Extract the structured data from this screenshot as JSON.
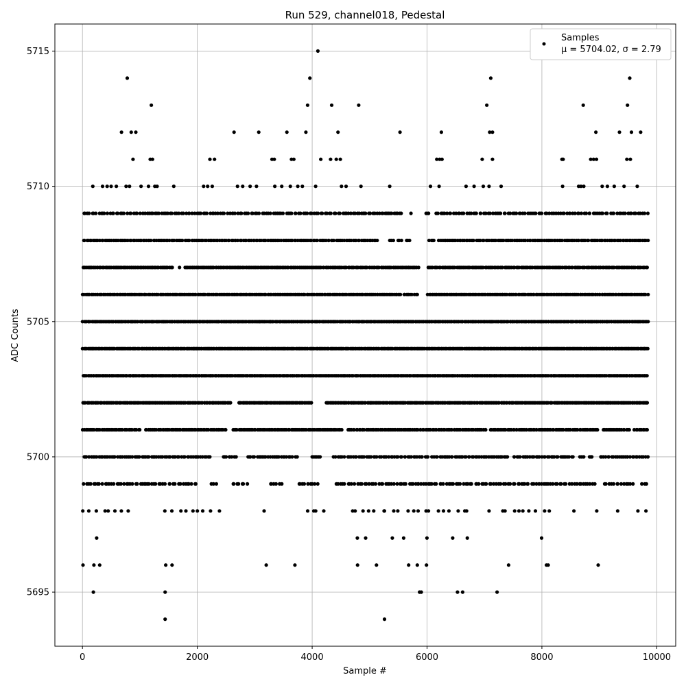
{
  "chart_data": {
    "type": "scatter",
    "title": "Run 529, channel018, Pedestal",
    "xlabel": "Sample #",
    "ylabel": "ADC Counts",
    "xlim": [
      -480,
      10330
    ],
    "ylim": [
      5693.0,
      5716.0
    ],
    "xticks": [
      0,
      2000,
      4000,
      6000,
      8000,
      10000
    ],
    "yticks": [
      5695,
      5700,
      5705,
      5710,
      5715
    ],
    "grid": true,
    "legend": {
      "position": "top-right",
      "label": "Samples",
      "stats": "μ = 5704.02, σ = 2.79"
    },
    "marker_color": "#000000",
    "series": [
      {
        "name": "Samples",
        "x": [
          4100,
          780,
          3960,
          7110,
          9530,
          1200,
          3920,
          4340,
          4810,
          7040,
          8720,
          9490,
          680,
          850,
          930,
          2640,
          3070,
          3560,
          3890,
          4450,
          5530,
          6250,
          7090,
          7140,
          8940,
          9350,
          9560,
          9720,
          880,
          1180,
          1220,
          2220,
          2300,
          3300,
          3340,
          3640,
          3680,
          4150,
          4320,
          4420,
          4490,
          6170,
          6220,
          6260,
          6960,
          7140,
          8350,
          8370,
          8850,
          8900,
          8950,
          9480,
          9540,
          180,
          350,
          430,
          500,
          590,
          760,
          820,
          1020,
          1150,
          1260,
          1300,
          1590,
          2110,
          2180,
          2260,
          2700,
          2790,
          2920,
          3030,
          3350,
          3470,
          3620,
          3750,
          3830,
          4060,
          4510,
          4590,
          4850,
          5350,
          6060,
          6210,
          6680,
          6820,
          6980,
          7080,
          7290,
          8360,
          8640,
          8680,
          8730,
          9050,
          9140,
          9260,
          9430,
          9660,
          5720,
          4910,
          5010,
          5300,
          5460,
          1100,
          6980,
          7700,
          5850,
          6400,
          10,
          200,
          300,
          1450,
          1560,
          3200,
          3700,
          4790,
          5120,
          5680,
          5830,
          5990,
          7420,
          8080,
          8110,
          8980,
          190,
          1440,
          5870,
          5900,
          6530,
          6620,
          7220,
          1440,
          5260
        ],
        "y": [
          5715,
          5714,
          5714,
          5714,
          5714,
          5713,
          5713,
          5713,
          5713,
          5713,
          5713,
          5713,
          5712,
          5712,
          5712,
          5712,
          5712,
          5712,
          5712,
          5712,
          5712,
          5712,
          5712,
          5712,
          5712,
          5712,
          5712,
          5712,
          5711,
          5711,
          5711,
          5711,
          5711,
          5711,
          5711,
          5711,
          5711,
          5711,
          5711,
          5711,
          5711,
          5711,
          5711,
          5711,
          5711,
          5711,
          5711,
          5711,
          5711,
          5711,
          5711,
          5711,
          5711,
          5710,
          5710,
          5710,
          5710,
          5710,
          5710,
          5710,
          5710,
          5710,
          5710,
          5710,
          5710,
          5710,
          5710,
          5710,
          5710,
          5710,
          5710,
          5710,
          5710,
          5710,
          5710,
          5710,
          5710,
          5710,
          5710,
          5710,
          5710,
          5710,
          5710,
          5710,
          5710,
          5710,
          5710,
          5710,
          5710,
          5710,
          5710,
          5710,
          5710,
          5710,
          5710,
          5710,
          5710,
          5710,
          5709,
          5709,
          5709,
          5709,
          5709,
          5699,
          5699,
          5699,
          5699,
          5699,
          5696,
          5696,
          5696,
          5696,
          5696,
          5696,
          5696,
          5696,
          5696,
          5696,
          5696,
          5696,
          5696,
          5696,
          5696,
          5696,
          5695,
          5695,
          5695,
          5695,
          5695,
          5695,
          5695,
          5694,
          5694
        ]
      }
    ],
    "bands": [
      {
        "y": 5709,
        "count": 260,
        "gaps": [
          [
            5560,
            5840
          ],
          [
            5880,
            5960
          ],
          [
            6030,
            6120
          ]
        ]
      },
      {
        "y": 5708,
        "count": 340,
        "gaps": [
          [
            5140,
            5330
          ],
          [
            5420,
            5490
          ],
          [
            5560,
            5620
          ],
          [
            5700,
            6020
          ],
          [
            6120,
            6200
          ]
        ]
      },
      {
        "y": 5707,
        "count": 380,
        "gaps": [
          [
            1590,
            1680
          ],
          [
            1700,
            1780
          ],
          [
            5860,
            6000
          ]
        ]
      },
      {
        "y": 5706,
        "count": 420,
        "gaps": [
          [
            5540,
            5580
          ],
          [
            5740,
            5770
          ],
          [
            5850,
            6000
          ]
        ]
      },
      {
        "y": 5705,
        "count": 460,
        "gaps": []
      },
      {
        "y": 5704,
        "count": 460,
        "gaps": []
      },
      {
        "y": 5703,
        "count": 460,
        "gaps": []
      },
      {
        "y": 5702,
        "count": 440,
        "gaps": [
          [
            2580,
            2720
          ],
          [
            4000,
            4240
          ]
        ]
      },
      {
        "y": 5701,
        "count": 400,
        "gaps": [
          [
            1000,
            1070
          ],
          [
            2520,
            2620
          ],
          [
            4540,
            4610
          ],
          [
            7030,
            7100
          ],
          [
            9000,
            9070
          ],
          [
            9540,
            9600
          ]
        ]
      },
      {
        "y": 5700,
        "count": 300,
        "gaps": [
          [
            2250,
            2400
          ],
          [
            2700,
            2880
          ],
          [
            3750,
            3960
          ],
          [
            4150,
            4340
          ],
          [
            4580,
            4620
          ],
          [
            6030,
            6080
          ],
          [
            7400,
            7500
          ],
          [
            8580,
            8640
          ],
          [
            8760,
            8800
          ],
          [
            8880,
            9020
          ]
        ]
      },
      {
        "y": 5699,
        "count": 240,
        "gaps": [
          [
            2000,
            2220
          ],
          [
            2340,
            2580
          ],
          [
            2880,
            3220
          ],
          [
            3500,
            3740
          ],
          [
            4100,
            4380
          ],
          [
            8960,
            9060
          ],
          [
            9320,
            9380
          ],
          [
            9620,
            9700
          ]
        ]
      },
      {
        "y": 5698,
        "count": 90,
        "gaps": [
          [
            840,
            1380
          ],
          [
            2400,
            3050
          ],
          [
            3230,
            3850
          ],
          [
            4250,
            4690
          ],
          [
            6860,
            7060
          ],
          [
            7130,
            7290
          ],
          [
            8280,
            8520
          ],
          [
            8600,
            8940
          ],
          [
            9060,
            9300
          ],
          [
            9440,
            9660
          ]
        ]
      },
      {
        "y": 5697,
        "count": 30,
        "gaps": [
          [
            450,
            1410
          ],
          [
            1480,
            1650
          ],
          [
            1820,
            1970
          ],
          [
            2140,
            4690
          ],
          [
            6800,
            7260
          ],
          [
            7320,
            7760
          ],
          [
            8120,
            9260
          ],
          [
            9340,
            9680
          ],
          [
            9780,
            9900
          ]
        ]
      }
    ]
  }
}
